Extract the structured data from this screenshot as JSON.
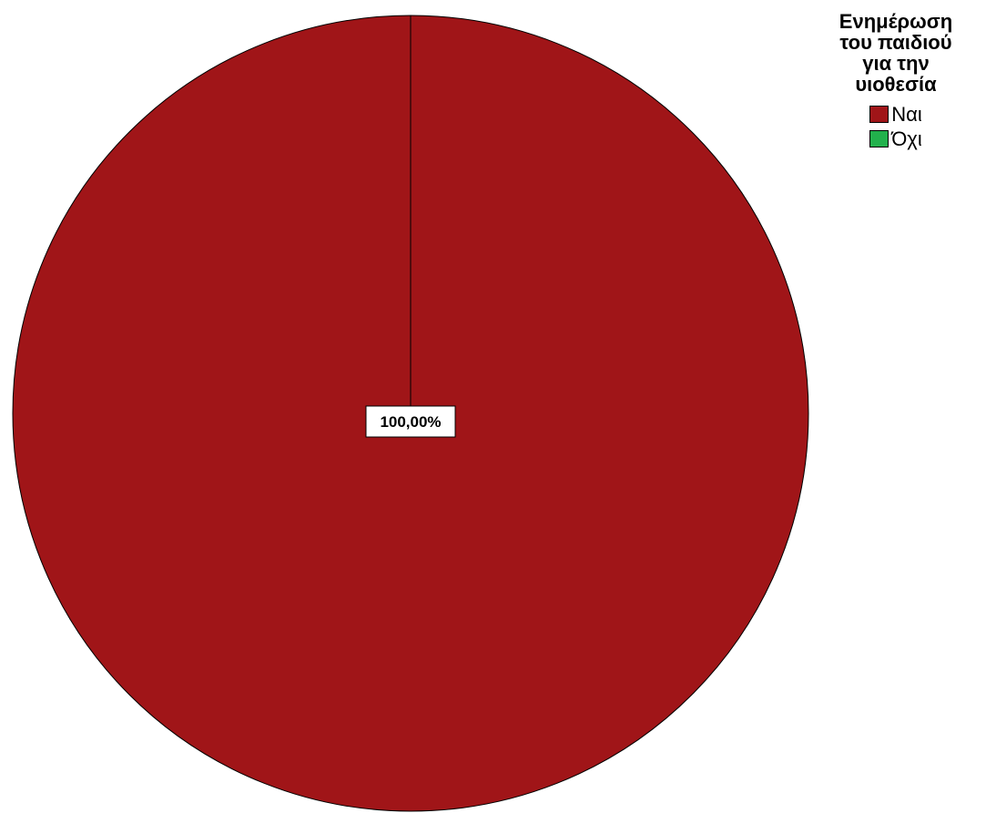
{
  "chart_data": {
    "type": "pie",
    "title": "",
    "legend": {
      "title": "Ενημέρωση του παιδιού για την υιοθεσία",
      "position": "top-right"
    },
    "slices": [
      {
        "name": "Ναι",
        "value": 100.0,
        "label": "100,00%",
        "color": "#a01518"
      },
      {
        "name": "Όχι",
        "value": 0.0,
        "label": "",
        "color": "#22b14c"
      }
    ],
    "start_angle": "12 o'clock",
    "direction": "clockwise"
  }
}
